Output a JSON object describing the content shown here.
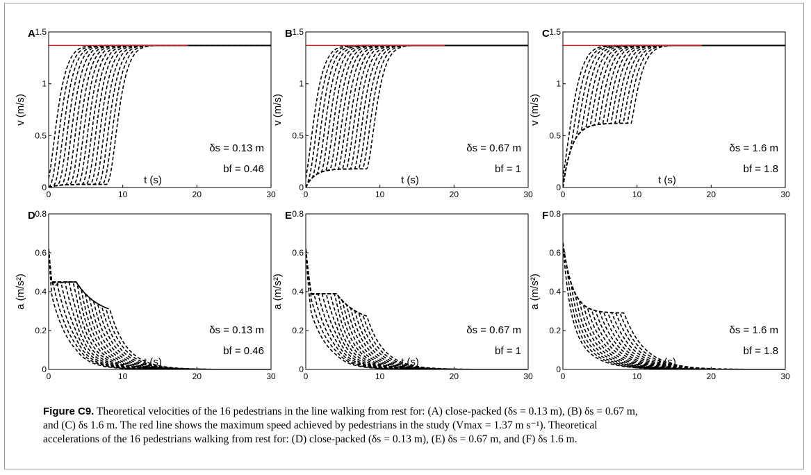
{
  "figure": {
    "caption_label": "Figure C9.",
    "caption_line1": "Theoretical velocities of the 16 pedestrians in the line walking from rest for: (A) close-packed (δs = 0.13 m), (B) δs = 0.67 m,",
    "caption_line2": "and (C) δs 1.6  m. The red line shows the maximum speed achieved by pedestrians in the study (Vmax = 1.37 m s⁻¹). Theoretical",
    "caption_line3": "accelerations of the 16 pedestrians walking from rest for: (D) close-packed (δs = 0.13 m), (E) δs = 0.67 m, and (F) δs 1.6  m."
  },
  "colors": {
    "series": "#000000",
    "max_speed_line": "#e8141c",
    "frame": "#9a9a9a"
  },
  "chart_data": [
    {
      "panel": "A",
      "type": "line",
      "xlabel": "t (s)",
      "ylabel": "v (m/s)",
      "xlim": [
        0,
        30
      ],
      "ylim": [
        0,
        1.5
      ],
      "xticks": [
        0,
        10,
        20,
        30
      ],
      "yticks": [
        0,
        0.5,
        1,
        1.5
      ],
      "tick_labels_y": [
        "0",
        "0.5",
        "1",
        "1.5"
      ],
      "annotation_delta": "δs = 0.13 m",
      "annotation_b": "bf = 0.46",
      "model": {
        "kind": "velocity",
        "n": 16,
        "plateau": 0.03,
        "start_gap": 0.55,
        "tau": 2.0,
        "vmax": 1.37
      },
      "reference_line": {
        "y": 1.37,
        "color": "#e8141c"
      }
    },
    {
      "panel": "B",
      "type": "line",
      "xlabel": "t (s)",
      "ylabel": "v (m/s)",
      "xlim": [
        0,
        30
      ],
      "ylim": [
        0,
        1.5
      ],
      "xticks": [
        0,
        10,
        20,
        30
      ],
      "yticks": [
        0,
        0.5,
        1,
        1.5
      ],
      "tick_labels_y": [
        "0",
        "0.5",
        "1",
        "1.5"
      ],
      "annotation_delta": "δs = 0.67 m",
      "annotation_b": "bf = 1",
      "model": {
        "kind": "velocity",
        "n": 16,
        "plateau": 0.18,
        "start_gap": 0.55,
        "tau": 2.0,
        "vmax": 1.37
      },
      "reference_line": {
        "y": 1.37,
        "color": "#e8141c"
      }
    },
    {
      "panel": "C",
      "type": "line",
      "xlabel": "t (s)",
      "ylabel": "v (m/s)",
      "xlim": [
        0,
        30
      ],
      "ylim": [
        0,
        1.5
      ],
      "xticks": [
        0,
        10,
        20,
        30
      ],
      "yticks": [
        0,
        0.5,
        1,
        1.5
      ],
      "tick_labels_y": [
        "0",
        "0.5",
        "1",
        "1.5"
      ],
      "annotation_delta": "δs = 1.6 m",
      "annotation_b": "bf = 1.8",
      "model": {
        "kind": "velocity",
        "n": 16,
        "plateau": 0.62,
        "start_gap": 0.55,
        "tau": 2.2,
        "vmax": 1.37
      },
      "reference_line": {
        "y": 1.37,
        "color": "#e8141c"
      }
    },
    {
      "panel": "D",
      "type": "line",
      "xlabel": "t (s)",
      "ylabel": "a (m/s²)",
      "xlim": [
        0,
        30
      ],
      "ylim": [
        0,
        0.8
      ],
      "xticks": [
        0,
        10,
        20,
        30
      ],
      "yticks": [
        0,
        0.2,
        0.4,
        0.6,
        0.8
      ],
      "tick_labels_y": [
        "0",
        "0.2",
        "0.4",
        "0.6",
        "0.8"
      ],
      "annotation_delta": "δs = 0.13 m",
      "annotation_b": "bf = 0.46",
      "model": {
        "kind": "acceleration",
        "n": 16,
        "peak": 0.45,
        "a0": 0.62,
        "start_gap": 0.55,
        "tau": 2.5,
        "low": 0.01
      }
    },
    {
      "panel": "E",
      "type": "line",
      "xlabel": "t (s)",
      "ylabel": "a (m/s²)",
      "xlim": [
        0,
        30
      ],
      "ylim": [
        0,
        0.8
      ],
      "xticks": [
        0,
        10,
        20,
        30
      ],
      "yticks": [
        0,
        0.2,
        0.4,
        0.6,
        0.8
      ],
      "tick_labels_y": [
        "0",
        "0.2",
        "0.4",
        "0.6",
        "0.8"
      ],
      "annotation_delta": "δs = 0.67 m",
      "annotation_b": "bf = 1",
      "model": {
        "kind": "acceleration",
        "n": 16,
        "peak": 0.39,
        "a0": 0.62,
        "start_gap": 0.55,
        "tau": 2.5,
        "low": 0.09
      }
    },
    {
      "panel": "F",
      "type": "line",
      "xlabel": "t (s)",
      "ylabel": "a (m/s²)",
      "xlim": [
        0,
        30
      ],
      "ylim": [
        0,
        0.8
      ],
      "xticks": [
        0,
        10,
        20,
        30
      ],
      "yticks": [
        0,
        0.2,
        0.4,
        0.6,
        0.8
      ],
      "tick_labels_y": [
        "0",
        "0.2",
        "0.4",
        "0.6",
        "0.8"
      ],
      "annotation_delta": "δs = 1.6 m",
      "annotation_b": "bf = 1.8",
      "model": {
        "kind": "acceleration",
        "n": 16,
        "peak": 0.2,
        "a0": 0.65,
        "start_gap": 0.55,
        "tau": 2.8,
        "low": 0.29
      }
    }
  ]
}
